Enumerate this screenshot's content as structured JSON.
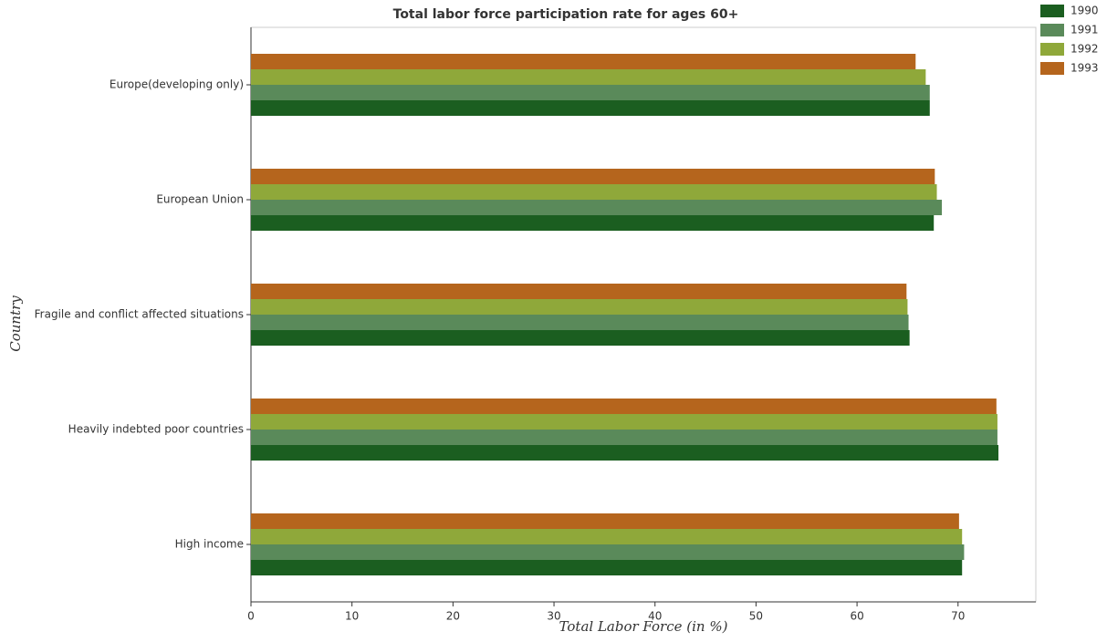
{
  "chart_data": {
    "type": "hbar",
    "title": "Total labor force participation rate for ages 60+",
    "x_label": "Total Labor Force (in %)",
    "y_label": "Country",
    "categories": [
      "Europe(developing only)",
      "European Union",
      "Fragile and conflict affected situations",
      "Heavily indebted poor countries",
      "High income"
    ],
    "series": [
      {
        "name": "1990",
        "color": "#1b5e20",
        "values": [
          67.2,
          67.6,
          65.2,
          74.0,
          70.4
        ]
      },
      {
        "name": "1991",
        "color": "#5a8a5a",
        "values": [
          67.2,
          68.4,
          65.1,
          73.9,
          70.6
        ]
      },
      {
        "name": "1992",
        "color": "#8fa83a",
        "values": [
          66.8,
          67.9,
          65.0,
          73.9,
          70.4
        ]
      },
      {
        "name": "1993",
        "color": "#b5651d",
        "values": [
          65.8,
          67.7,
          64.9,
          73.8,
          70.1
        ]
      }
    ],
    "xlim": [
      0,
      77.7
    ],
    "xticks": [
      0,
      10,
      20,
      30,
      40,
      50,
      60,
      70
    ],
    "legend": "upper-right"
  }
}
